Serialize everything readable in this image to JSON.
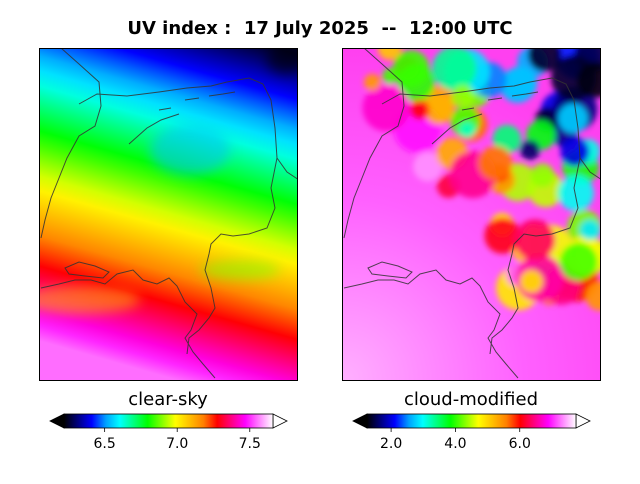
{
  "title": "UV index :  17 July 2025  --  12:00 UTC",
  "chart_data": [
    {
      "type": "heatmap",
      "panel": "clear-sky",
      "label": "clear-sky",
      "colorbar": {
        "range": [
          6.22,
          7.66
        ],
        "ticks": [
          6.5,
          7.0,
          7.5
        ],
        "tick_labels": [
          "6.5",
          "7.0",
          "7.5"
        ],
        "extend": "both"
      },
      "field_description": "Values increase from about 6.3 in the north-east to about 7.6 in the south.",
      "field_samples": [
        {
          "region": "north-east corner",
          "value": 6.25
        },
        {
          "region": "north",
          "value": 6.55
        },
        {
          "region": "centre",
          "value": 6.95
        },
        {
          "region": "south",
          "value": 7.35
        },
        {
          "region": "far south",
          "value": 7.55
        }
      ]
    },
    {
      "type": "heatmap",
      "panel": "cloud-modified",
      "label": "cloud-modified",
      "colorbar": {
        "range": [
          1.25,
          7.75
        ],
        "ticks": [
          2.0,
          4.0,
          6.0
        ],
        "tick_labels": [
          "2.0",
          "4.0",
          "6.0"
        ],
        "extend": "both"
      },
      "field_description": "Clear, high values (~7) in the south-west; broken cloud with values 2-6 in the north-east.",
      "field_samples": [
        {
          "region": "south-west",
          "value": 7.0
        },
        {
          "region": "north-east",
          "value": 3.5
        },
        {
          "region": "cloud band edge",
          "value": 5.8
        },
        {
          "region": "east border",
          "value": 1.5
        }
      ]
    }
  ],
  "colors": {
    "map_stops": [
      "#000000",
      "#000080",
      "#0000ff",
      "#00a0ff",
      "#00ffff",
      "#00ff80",
      "#00ff00",
      "#80ff00",
      "#ffff00",
      "#ffc000",
      "#ff8000",
      "#ff0000",
      "#ff0080",
      "#ff00ff",
      "#ff80ff",
      "#ffffff"
    ],
    "coastline": "#333333"
  }
}
